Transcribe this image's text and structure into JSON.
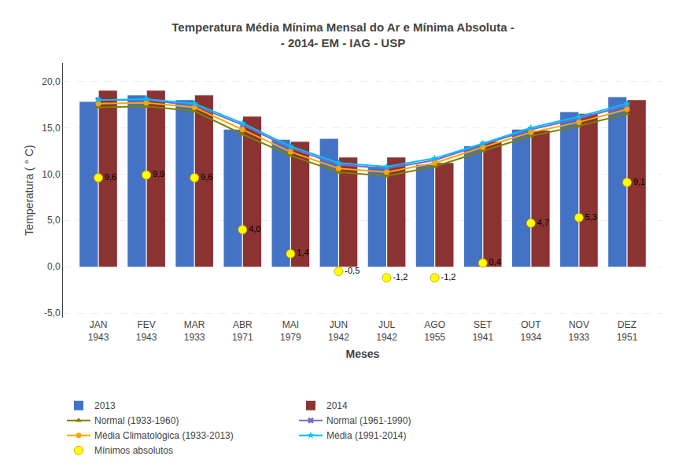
{
  "chart_data": {
    "type": "bar",
    "title": "Temperatura Média Mínima Mensal do Ar e Mínima Absoluta -\n- 2014- EM - IAG - USP",
    "xlabel": "Meses",
    "ylabel": "Temperatura ( ° C)",
    "categories": [
      "JAN\n1943",
      "FEV\n1943",
      "MAR\n1933",
      "ABR\n1971",
      "MAI\n1979",
      "JUN\n1942",
      "JUL\n1942",
      "AGO\n1955",
      "SET\n1941",
      "OUT\n1934",
      "NOV\n1933",
      "DEZ\n1951"
    ],
    "series": [
      {
        "name": "2013",
        "type": "bar",
        "color": "#4472C4",
        "values": [
          17.8,
          18.5,
          18.0,
          14.8,
          13.7,
          13.8,
          10.8,
          11.0,
          13.0,
          14.8,
          16.7,
          18.3
        ]
      },
      {
        "name": "2014",
        "type": "bar",
        "color": "#8B3333",
        "values": [
          19.0,
          19.0,
          18.5,
          16.2,
          13.5,
          11.8,
          11.8,
          11.2,
          13.5,
          14.7,
          16.5,
          18.0
        ]
      },
      {
        "name": "Normal (1933-1960)",
        "type": "line",
        "color": "#7F7F00",
        "marker": "triangle-up",
        "values": [
          17.2,
          17.3,
          16.8,
          14.3,
          12.0,
          10.2,
          9.8,
          10.8,
          12.5,
          14.1,
          15.2,
          16.5
        ]
      },
      {
        "name": "Normal (1961-1990)",
        "type": "line",
        "color": "#7B68CC",
        "marker": "x",
        "values": [
          18.0,
          18.0,
          17.4,
          15.3,
          12.8,
          11.0,
          10.6,
          11.5,
          13.2,
          14.8,
          16.0,
          17.4
        ]
      },
      {
        "name": "Média Climatológica (1933-2013)",
        "type": "line",
        "color": "#FFA500",
        "marker": "circle",
        "values": [
          17.6,
          17.7,
          17.2,
          14.8,
          12.4,
          10.6,
          10.2,
          11.2,
          12.9,
          14.5,
          15.6,
          17.0
        ]
      },
      {
        "name": "Média (1991-2014)",
        "type": "line",
        "color": "#00BFFF",
        "marker": "star",
        "values": [
          18.0,
          18.1,
          17.6,
          15.5,
          13.0,
          11.2,
          10.8,
          11.7,
          13.3,
          15.0,
          16.2,
          17.6
        ]
      },
      {
        "name": "Mínimos absolutos",
        "type": "scatter",
        "color": "#FFFF00",
        "marker": "circle",
        "data_labels": true,
        "values": [
          9.6,
          9.9,
          9.6,
          4.0,
          1.4,
          -0.5,
          -1.2,
          -1.2,
          0.4,
          4.7,
          5.3,
          9.1
        ],
        "value_labels": [
          "9,6",
          "9,9",
          "9,6",
          "4,0",
          "1,4",
          "-0,5",
          "-1,2",
          "-1,2",
          "0,4",
          "4,7",
          "5,3",
          "9,1"
        ]
      }
    ],
    "ylim": [
      -5.5,
      22
    ],
    "yticks": [
      {
        "value": -5.0,
        "label": "-5,0"
      },
      {
        "value": 0.0,
        "label": "0,0"
      },
      {
        "value": 5.0,
        "label": "5,0"
      },
      {
        "value": 10.0,
        "label": "10,0"
      },
      {
        "value": 15.0,
        "label": "15,0"
      },
      {
        "value": 20.0,
        "label": "20,0"
      }
    ],
    "grid": true,
    "legend": "bottom"
  }
}
